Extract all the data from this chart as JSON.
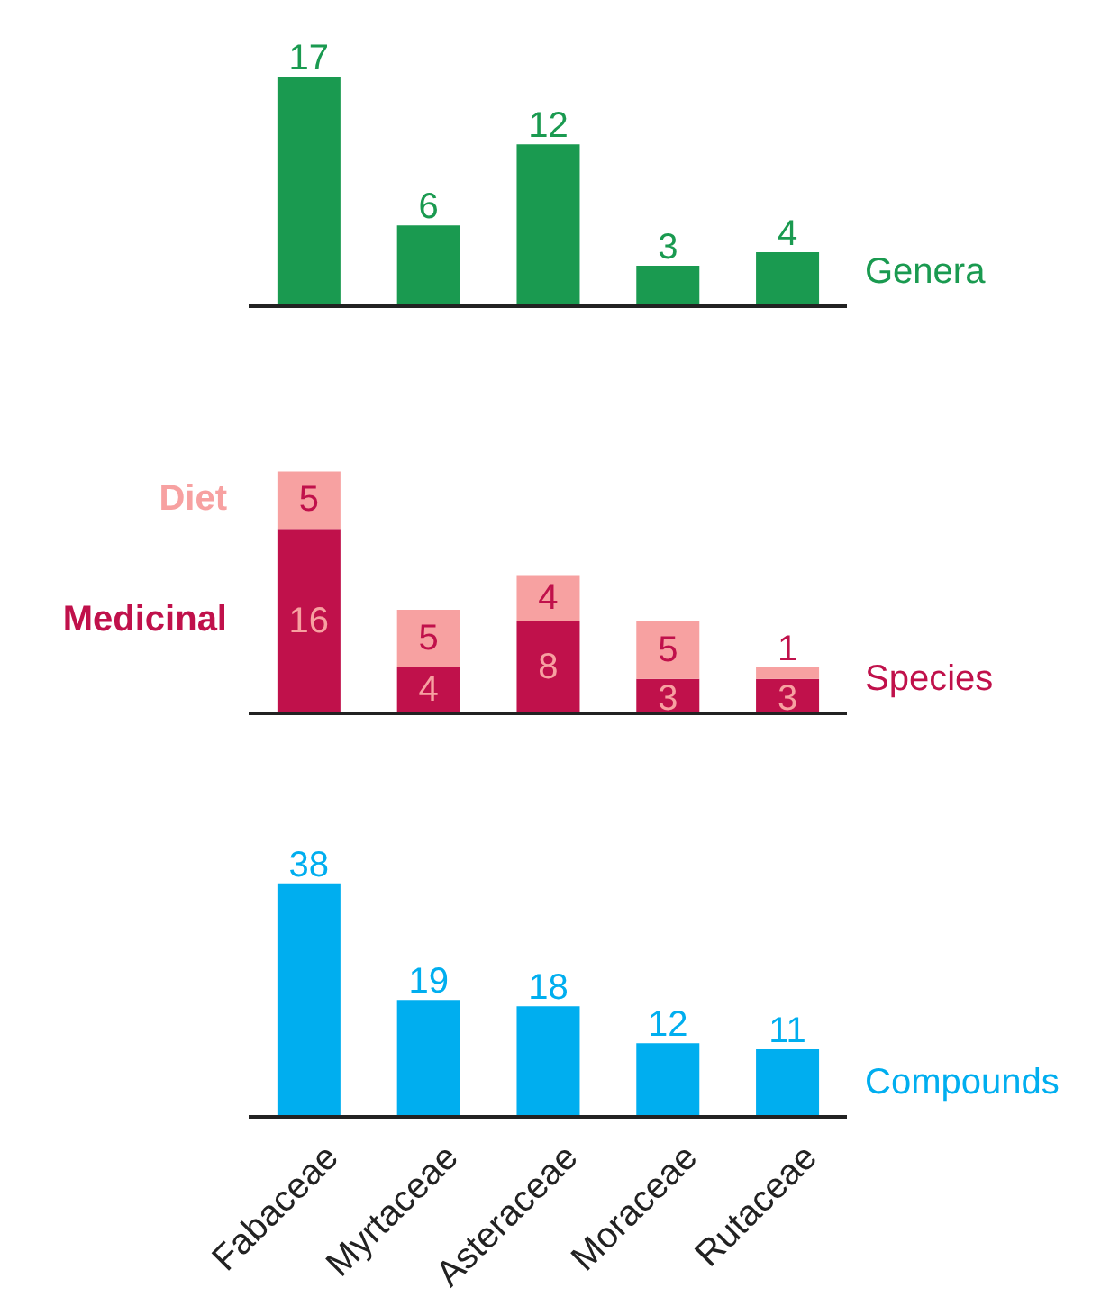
{
  "chart_data": [
    {
      "type": "bar",
      "ylabel": "Genera",
      "categories": [
        null,
        null,
        null,
        null,
        null
      ],
      "series": [
        {
          "color": "#1a9a50",
          "values": [
            17,
            6,
            12,
            3,
            4
          ]
        }
      ],
      "data_labels": true,
      "legend": false,
      "grid": false
    },
    {
      "type": "bar",
      "ylabel": "Species",
      "stacked": true,
      "categories": [
        null,
        null,
        null,
        null,
        null
      ],
      "series": [
        {
          "name": "Medicinal",
          "color": "#c0114b",
          "values": [
            16,
            4,
            8,
            3,
            3
          ]
        },
        {
          "name": "Diet",
          "color": "#f7a1a1",
          "values": [
            5,
            5,
            4,
            5,
            1
          ]
        }
      ],
      "data_labels": true,
      "legend": "left",
      "grid": false
    },
    {
      "type": "bar",
      "ylabel": "Compounds",
      "categories": [
        "Fabaceae",
        "Myrtaceae",
        "Asteraceae",
        "Moraceae",
        "Rutaceae"
      ],
      "series": [
        {
          "color": "#00aeef",
          "values": [
            38,
            19,
            18,
            12,
            11
          ]
        }
      ],
      "data_labels": true,
      "tick_labels": "x",
      "legend": false,
      "grid": false
    }
  ]
}
